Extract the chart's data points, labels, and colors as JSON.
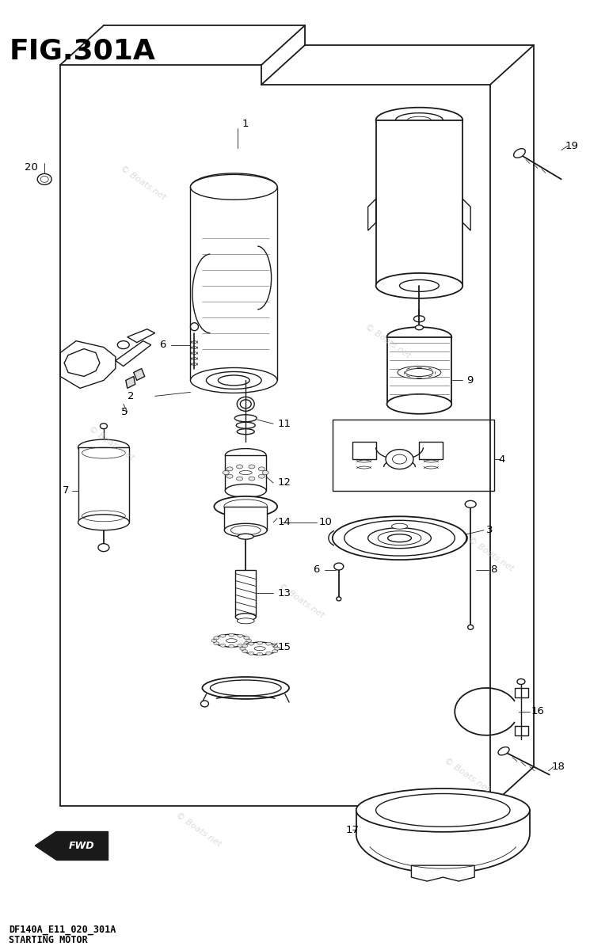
{
  "title": "FIG.301A",
  "subtitle1": "DF140A_E11_020_301A",
  "subtitle2": "STARTING MOTOR",
  "watermark": "© Boats.net",
  "background_color": "#ffffff",
  "line_color": "#000000",
  "title_fontsize": 26,
  "subtitle_fontsize": 8.5,
  "label_fontsize": 9.5
}
